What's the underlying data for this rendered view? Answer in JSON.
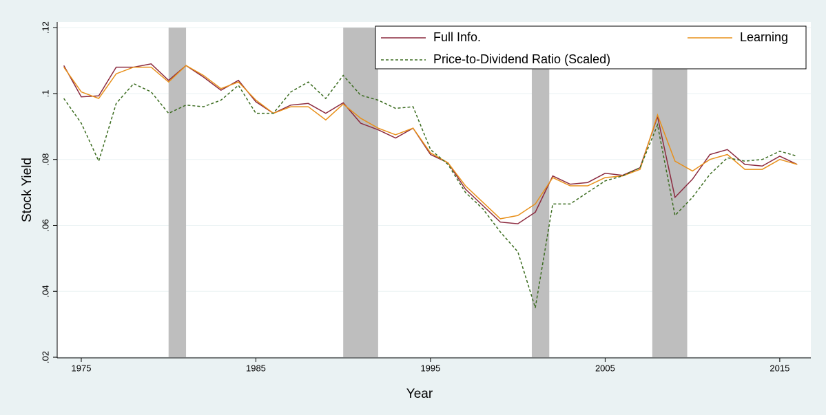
{
  "chart_data": {
    "type": "line",
    "xlabel": "Year",
    "ylabel": "Stock Yield",
    "x": [
      1974,
      1975,
      1976,
      1977,
      1978,
      1979,
      1980,
      1981,
      1982,
      1983,
      1984,
      1985,
      1986,
      1987,
      1988,
      1989,
      1990,
      1991,
      1992,
      1993,
      1994,
      1995,
      1996,
      1997,
      1998,
      1999,
      2000,
      2001,
      2002,
      2003,
      2004,
      2005,
      2006,
      2007,
      2008,
      2009,
      2010,
      2011,
      2012,
      2013,
      2014,
      2015,
      2016
    ],
    "series": [
      {
        "name": "Full Info.",
        "color": "#8b2a3f",
        "dash": false,
        "values": [
          0.1085,
          0.099,
          0.0993,
          0.108,
          0.108,
          0.109,
          0.104,
          0.1085,
          0.105,
          0.101,
          0.104,
          0.0975,
          0.094,
          0.0965,
          0.097,
          0.094,
          0.0972,
          0.091,
          0.089,
          0.0865,
          0.0895,
          0.0815,
          0.079,
          0.071,
          0.066,
          0.061,
          0.0605,
          0.064,
          0.075,
          0.0725,
          0.073,
          0.0758,
          0.0752,
          0.0775,
          0.093,
          0.0685,
          0.074,
          0.0815,
          0.083,
          0.0785,
          0.078,
          0.081,
          0.0785
        ]
      },
      {
        "name": "Learning",
        "color": "#e8901a",
        "dash": false,
        "values": [
          0.108,
          0.1005,
          0.0985,
          0.106,
          0.108,
          0.108,
          0.1035,
          0.1085,
          0.1055,
          0.1015,
          0.1035,
          0.098,
          0.094,
          0.096,
          0.096,
          0.092,
          0.0968,
          0.0925,
          0.0895,
          0.0875,
          0.0895,
          0.082,
          0.079,
          0.072,
          0.067,
          0.062,
          0.063,
          0.0665,
          0.0745,
          0.072,
          0.072,
          0.0745,
          0.075,
          0.077,
          0.0935,
          0.0795,
          0.0765,
          0.08,
          0.0815,
          0.077,
          0.077,
          0.08,
          0.0785
        ]
      },
      {
        "name": "Price-to-Dividend Ratio (Scaled)",
        "color": "#3a6b1e",
        "dash": true,
        "values": [
          0.0985,
          0.091,
          0.0795,
          0.097,
          0.103,
          0.1005,
          0.094,
          0.0965,
          0.096,
          0.098,
          0.1025,
          0.094,
          0.094,
          0.1005,
          0.1035,
          0.0985,
          0.1055,
          0.0995,
          0.098,
          0.0955,
          0.096,
          0.083,
          0.0785,
          0.07,
          0.065,
          0.058,
          0.052,
          0.035,
          0.0665,
          0.0665,
          0.07,
          0.0735,
          0.075,
          0.0775,
          0.0905,
          0.063,
          0.0685,
          0.0755,
          0.0805,
          0.0795,
          0.08,
          0.0825,
          0.081
        ]
      }
    ],
    "recessions": [
      [
        1980,
        1981
      ],
      [
        1990,
        1992
      ],
      [
        2000.8,
        2001.8
      ],
      [
        2007.7,
        2009.7
      ]
    ],
    "recession_color": "#bebebe",
    "xlim": [
      1973.62,
      2016.78
    ],
    "xticks": [
      1975,
      1985,
      1995,
      2005,
      2015
    ],
    "ylim": [
      0.0198,
      0.1217
    ],
    "yticks": [
      {
        "value": 0.02,
        "label": ".02"
      },
      {
        "value": 0.04,
        "label": ".04"
      },
      {
        "value": 0.06,
        "label": ".06"
      },
      {
        "value": 0.08,
        "label": ".08"
      },
      {
        "value": 0.1,
        "label": ".1"
      },
      {
        "value": 0.12,
        "label": ".12"
      }
    ],
    "grid": true
  }
}
